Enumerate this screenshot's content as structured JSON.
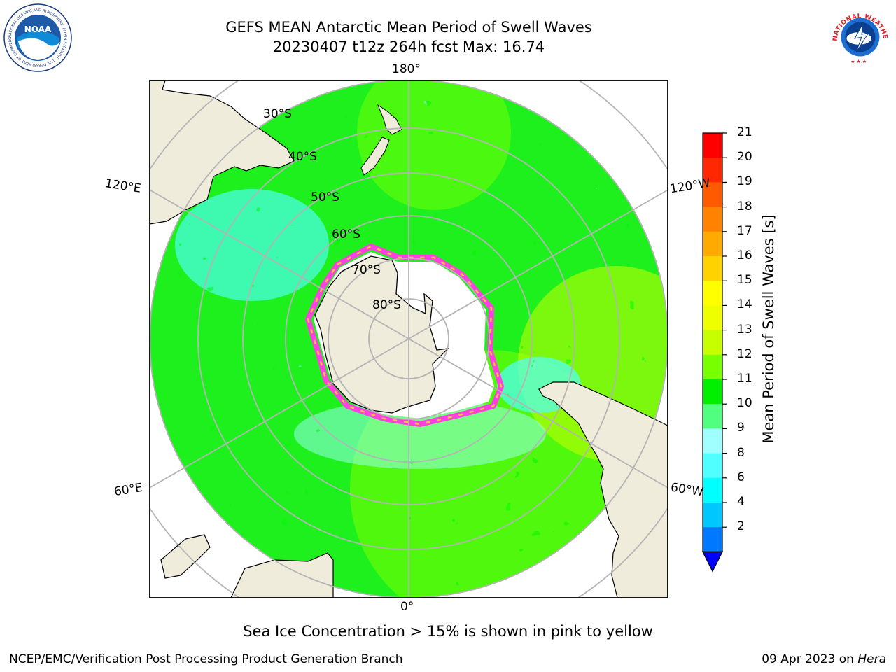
{
  "header": {
    "title_line1": "GEFS MEAN Antarctic Mean Period of Swell Waves",
    "title_line2": "20230407 t12z 264h fcst   Max: 16.74"
  },
  "logos": {
    "noaa_text": "NOAA",
    "noaa_ring_text": "NATIONAL OCEANIC AND ATMOSPHERIC ADMINISTRATION · U.S. DEPARTMENT OF COMMERCE",
    "nws_ring_text": "NATIONAL WEATHER SERVICE"
  },
  "map": {
    "longitude_labels": {
      "top": "180°",
      "bottom": "0°",
      "left_upper": "120°E",
      "left_lower": "60°E",
      "right_upper": "120°W",
      "right_lower": "60°W"
    },
    "latitude_labels": [
      "30°S",
      "40°S",
      "50°S",
      "60°S",
      "70°S",
      "80°S"
    ],
    "colors": {
      "land": "#efecdc",
      "ocean_fill": "#1ef01e",
      "grid": "#b4b4b4"
    }
  },
  "colorbar": {
    "label": "Mean Period of Swell Waves [s]",
    "ticks": [
      "21",
      "20",
      "19",
      "18",
      "17",
      "16",
      "15",
      "14",
      "13",
      "12",
      "11",
      "10",
      "9",
      "8",
      "6",
      "4",
      "2"
    ],
    "colors_top_to_bottom": [
      "#ff0000",
      "#ff2800",
      "#ff5a00",
      "#ff8200",
      "#ffaa00",
      "#ffd200",
      "#ffff00",
      "#eeff00",
      "#c8ff00",
      "#78ff00",
      "#00f000",
      "#50ff80",
      "#a0ffff",
      "#50ffff",
      "#00ffff",
      "#00c8ff",
      "#0078ff"
    ],
    "extend_color": "#0000ff"
  },
  "caption": "Sea Ice Concentration > 15% is shown in pink to yellow",
  "footer": {
    "left": "NCEP/EMC/Verification Post Processing Product Generation Branch",
    "date": "09 Apr 2023 on ",
    "machine": "Hera"
  }
}
